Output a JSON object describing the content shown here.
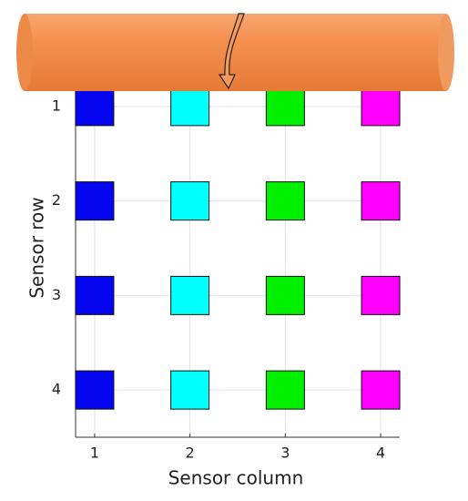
{
  "chart_data": {
    "type": "scatter",
    "xlabel": "Sensor column",
    "ylabel": "Sensor row",
    "series": [
      {
        "color": "#0505f0",
        "x": [
          1,
          1,
          1,
          1
        ],
        "values": [
          1,
          2,
          3,
          4
        ]
      },
      {
        "color": "#00ffff",
        "x": [
          2,
          2,
          2,
          2
        ],
        "values": [
          1,
          2,
          3,
          4
        ]
      },
      {
        "color": "#00f000",
        "x": [
          3,
          3,
          3,
          3
        ],
        "values": [
          1,
          2,
          3,
          4
        ]
      },
      {
        "color": "#ff00ff",
        "x": [
          4,
          4,
          4,
          4
        ],
        "values": [
          1,
          2,
          3,
          4
        ]
      }
    ],
    "xlim": [
      0.8,
      4.2
    ],
    "ylim": [
      4.5,
      0.5
    ],
    "xticks": [
      1,
      2,
      3,
      4
    ],
    "yticks": [
      1,
      2,
      3,
      4
    ],
    "grid": true
  }
}
